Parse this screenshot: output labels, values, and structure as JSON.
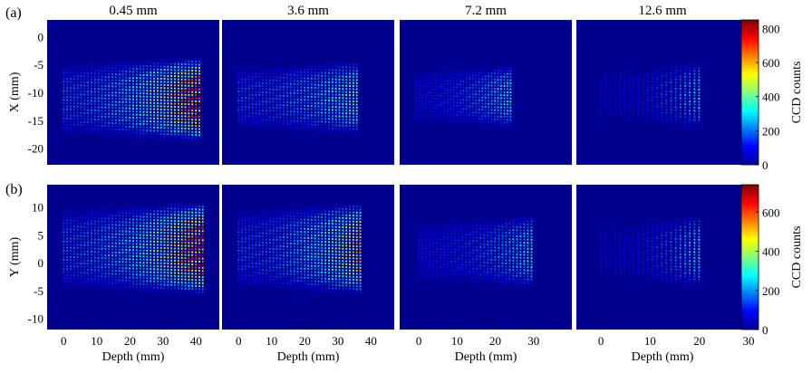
{
  "figure": {
    "row_labels": [
      "(a)",
      "(b)"
    ],
    "colorbar_label": "CCD counts",
    "colormap": [
      "#00008f",
      "#0000ff",
      "#0080ff",
      "#00ffff",
      "#80ff80",
      "#ffff00",
      "#ff8000",
      "#ff0000",
      "#800000"
    ]
  },
  "chart_data": [
    {
      "type": "heatmap",
      "row": "a",
      "title": "0.45 mm",
      "xlabel": "",
      "ylabel": "X (mm)",
      "xlim": [
        -5,
        47
      ],
      "ylim": [
        -23,
        3
      ],
      "xticks": [],
      "yticks": [
        0,
        -5,
        -10,
        -15,
        -20
      ],
      "depth_range": [
        0,
        41
      ],
      "band": [
        -18,
        -4.5
      ],
      "intensity_range": [
        0.25,
        1.0
      ]
    },
    {
      "type": "heatmap",
      "row": "a",
      "title": "3.6 mm",
      "xlabel": "",
      "ylabel": "",
      "xlim": [
        -5,
        47
      ],
      "ylim": [
        -23,
        3
      ],
      "xticks": [],
      "yticks": [],
      "depth_range": [
        0,
        36
      ],
      "band": [
        -17,
        -5
      ],
      "intensity_range": [
        0.22,
        0.55
      ]
    },
    {
      "type": "heatmap",
      "row": "a",
      "title": "7.2 mm",
      "xlabel": "",
      "ylabel": "",
      "xlim": [
        -5,
        47
      ],
      "ylim": [
        -23,
        3
      ],
      "xticks": [],
      "yticks": [],
      "depth_range": [
        0,
        29
      ],
      "band": [
        -16,
        -5.5
      ],
      "intensity_range": [
        0.15,
        0.45
      ]
    },
    {
      "type": "heatmap",
      "row": "a",
      "title": "12.6 mm",
      "xlabel": "",
      "ylabel": "",
      "xlim": [
        -5,
        30
      ],
      "ylim": [
        -23,
        3
      ],
      "xticks": [],
      "yticks": [],
      "depth_range": [
        0,
        20
      ],
      "band": [
        -16,
        -5
      ],
      "intensity_range": [
        0.1,
        0.4
      ]
    },
    {
      "type": "heatmap",
      "row": "b",
      "title": "",
      "xlabel": "Depth (mm)",
      "ylabel": "Y (mm)",
      "xlim": [
        -5,
        47
      ],
      "ylim": [
        -12,
        14
      ],
      "xticks": [
        0,
        10,
        20,
        30,
        40
      ],
      "yticks": [
        10,
        5,
        0,
        -5,
        -10
      ],
      "depth_range": [
        0,
        42
      ],
      "band": [
        -5,
        10
      ],
      "intensity_range": [
        0.25,
        1.0
      ]
    },
    {
      "type": "heatmap",
      "row": "b",
      "title": "",
      "xlabel": "Depth (mm)",
      "ylabel": "",
      "xlim": [
        -5,
        47
      ],
      "ylim": [
        -12,
        14
      ],
      "xticks": [
        0,
        10,
        20,
        30,
        40
      ],
      "yticks": [],
      "depth_range": [
        0,
        37
      ],
      "band": [
        -5,
        10
      ],
      "intensity_range": [
        0.22,
        0.8
      ]
    },
    {
      "type": "heatmap",
      "row": "b",
      "title": "",
      "xlabel": "Depth (mm)",
      "ylabel": "",
      "xlim": [
        -5,
        40
      ],
      "ylim": [
        -12,
        14
      ],
      "xticks": [
        0,
        10,
        20,
        30
      ],
      "yticks": [],
      "depth_range": [
        0,
        30
      ],
      "band": [
        -4,
        8
      ],
      "intensity_range": [
        0.15,
        0.45
      ]
    },
    {
      "type": "heatmap",
      "row": "b",
      "title": "",
      "xlabel": "Depth (mm)",
      "ylabel": "",
      "xlim": [
        -5,
        30
      ],
      "ylim": [
        -12,
        14
      ],
      "xticks": [
        0,
        10,
        20,
        30
      ],
      "yticks": [],
      "depth_range": [
        0,
        20
      ],
      "band": [
        -4,
        8
      ],
      "intensity_range": [
        0.1,
        0.42
      ]
    }
  ],
  "colorbars": [
    {
      "row": "a",
      "range": [
        0,
        850
      ],
      "ticks": [
        0,
        200,
        400,
        600,
        800
      ]
    },
    {
      "row": "b",
      "range": [
        0,
        740
      ],
      "ticks": [
        0,
        200,
        400,
        600
      ]
    }
  ]
}
